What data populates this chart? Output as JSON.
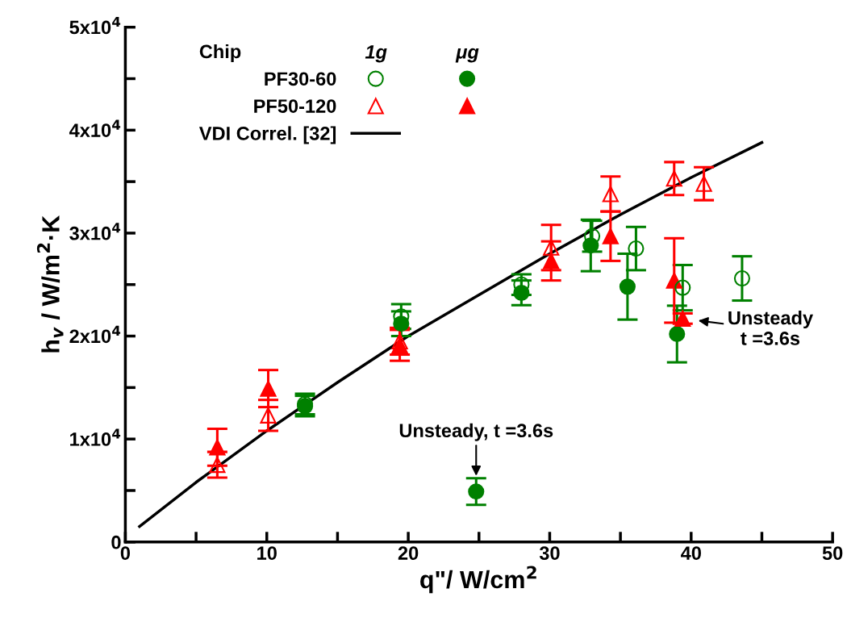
{
  "chart_data": {
    "type": "scatter",
    "xlabel": "q\"/ W/cm$^{2}$",
    "ylabel": "h$_{v}$ / W/m$^{2}$·K",
    "legend_title": "Chip",
    "legend": "top left",
    "grid": false,
    "xlim": [
      0,
      50
    ],
    "ylim": [
      0,
      50000
    ],
    "xticks": [
      0,
      {
        "value": 5,
        "label": null
      },
      10,
      {
        "value": 15,
        "label": null
      },
      20,
      {
        "value": 25,
        "label": null
      },
      30,
      {
        "value": 35,
        "label": null
      },
      40,
      {
        "value": 45,
        "label": null
      },
      50
    ],
    "yticks": [
      0,
      {
        "value": 5000,
        "label": null
      },
      {
        "value": 10000,
        "label": "1x10$^{4}$"
      },
      {
        "value": 15000,
        "label": null
      },
      {
        "value": 20000,
        "label": "2x10$^{4}$"
      },
      {
        "value": 25000,
        "label": null
      },
      {
        "value": 30000,
        "label": "3x10$^{4}$"
      },
      {
        "value": 35000,
        "label": null
      },
      {
        "value": 40000,
        "label": "4x10$^{4}$"
      },
      {
        "value": 45000,
        "label": null
      },
      {
        "value": 50000,
        "label": "5x10$^{4}$"
      }
    ],
    "series": [
      {
        "name": "PF30-60",
        "color": "#008000",
        "marker": "circle",
        "x": [
          12.7,
          19.5,
          28,
          33,
          36.1,
          39.4,
          43.6
        ],
        "values": [
          13400,
          21900,
          25000,
          29700,
          28500,
          24700,
          25600
        ],
        "errors": [
          1000,
          1200,
          1000,
          1500,
          2100,
          2200,
          2150
        ]
      },
      {
        "color": "#008000",
        "marker": "circle",
        "x": [
          12.7,
          19.5,
          24.8,
          28,
          32.9,
          35.5,
          39.0
        ],
        "values": [
          13200,
          21200,
          4900,
          24200,
          28800,
          24800,
          20200
        ],
        "errors": [
          1000,
          1200,
          1300,
          1200,
          2500,
          3200,
          2750
        ]
      },
      {
        "name": "PF50-120",
        "color": "#ff0000",
        "marker": "triangle",
        "x": [
          6.5,
          10.1,
          19.4,
          30.1,
          34.3,
          38.8,
          40.9
        ],
        "values": [
          7500,
          12300,
          19500,
          28600,
          33800,
          35300,
          34800
        ],
        "errors": [
          1250,
          1500,
          1300,
          2200,
          1700,
          1600,
          1600
        ]
      },
      {
        "color": "#ff0000",
        "marker": "triangle",
        "x": [
          6.5,
          10.1,
          19.4,
          30.1,
          34.3,
          38.8,
          39.4
        ],
        "values": [
          9200,
          14900,
          19100,
          27300,
          29700,
          25400,
          21700
        ],
        "errors": [
          1800,
          1800,
          1500,
          1900,
          2400,
          4100,
          500
        ]
      },
      {
        "name": "VDI Correl. [32]",
        "type": "line",
        "color": "#000000",
        "marker": "none",
        "x": [
          1,
          5,
          10,
          15,
          20,
          25,
          30,
          35,
          40,
          45
        ],
        "values": [
          1500,
          5800,
          10800,
          15500,
          20000,
          24000,
          28000,
          31800,
          35400,
          38800
        ]
      }
    ],
    "annotations": [
      "1g",
      "μg",
      {
        "text": "Unsteady, t =3.6s",
        "x": 24.8,
        "y": 4900
      },
      {
        "text": "Unsteady\nt =3.6s",
        "x": 39.4,
        "y": 21700
      }
    ]
  }
}
